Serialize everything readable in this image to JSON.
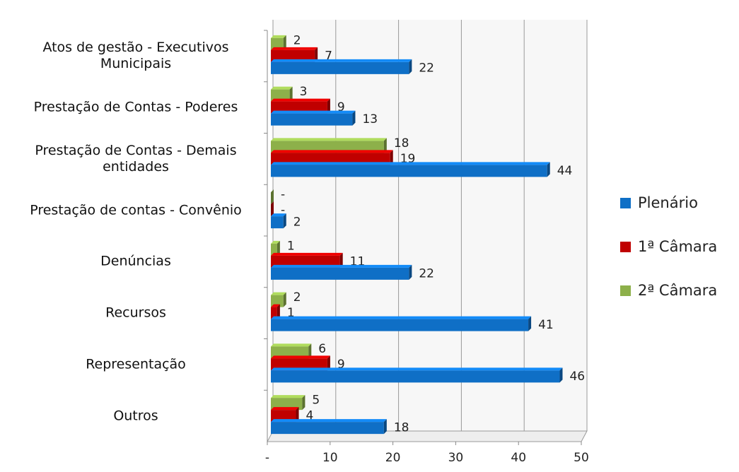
{
  "chart_data": {
    "type": "bar",
    "orientation": "horizontal",
    "categories": [
      "Atos de gestão - Executivos Municipais",
      "Prestação de Contas - Poderes",
      "Prestação de Contas - Demais entidades",
      "Prestação de contas - Convênio",
      "Denúncias",
      "Recursos",
      "Representação",
      "Outros"
    ],
    "series": [
      {
        "name": "2ª Câmara",
        "color": "#8db04a",
        "values": [
          2,
          3,
          18,
          0,
          1,
          2,
          6,
          5
        ],
        "value_labels": [
          "2",
          "3",
          "18",
          "-",
          "1",
          "2",
          "6",
          "5"
        ]
      },
      {
        "name": "1ª Câmara",
        "color": "#c00000",
        "values": [
          7,
          9,
          19,
          0,
          11,
          1,
          9,
          4
        ],
        "value_labels": [
          "7",
          "9",
          "19",
          "-",
          "11",
          "1",
          "9",
          "4"
        ]
      },
      {
        "name": "Plenário",
        "color": "#0f6fc6",
        "values": [
          22,
          13,
          44,
          2,
          22,
          41,
          46,
          18
        ]
      }
    ],
    "xlim": [
      0,
      50
    ],
    "xticks": [
      {
        "value": 0,
        "label": "-"
      },
      10,
      20,
      30,
      40,
      50
    ],
    "grid": true,
    "legend": "right"
  }
}
